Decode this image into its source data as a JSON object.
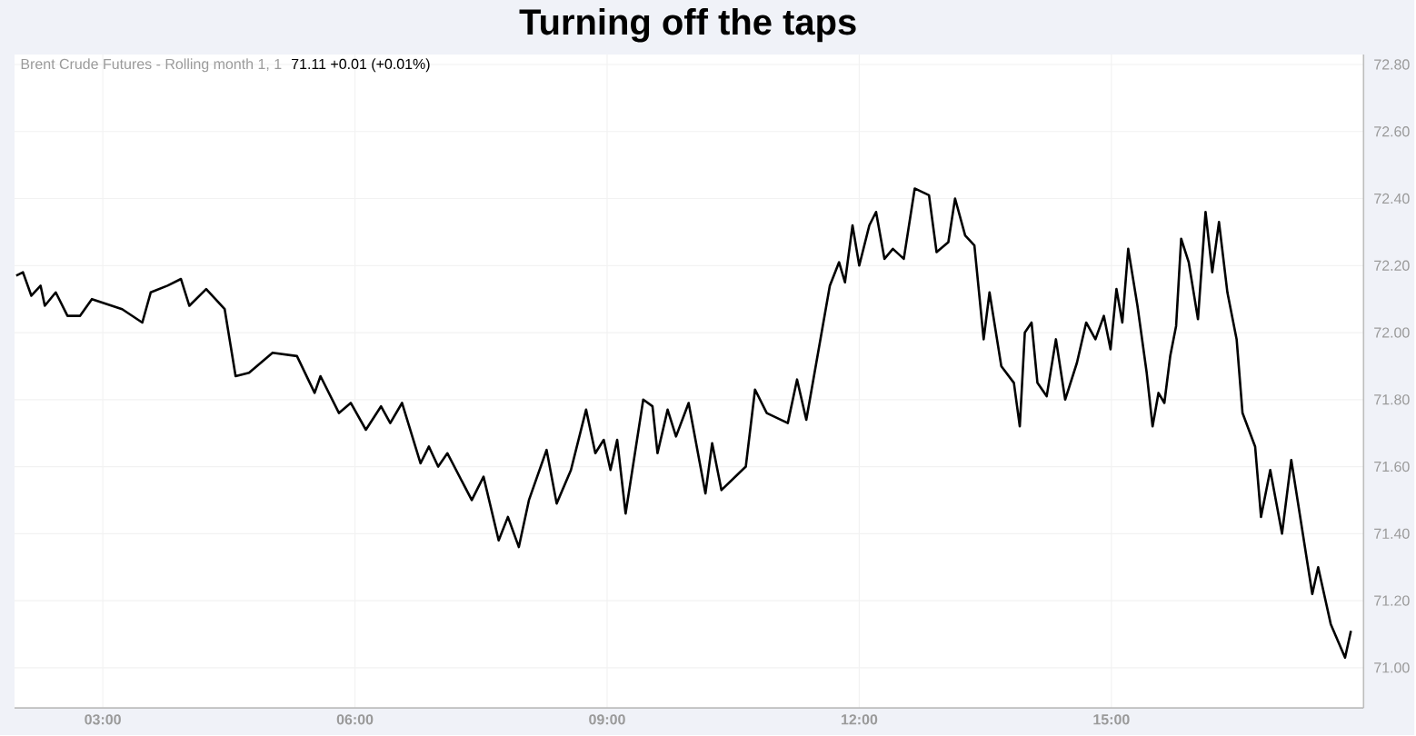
{
  "chart_data": {
    "type": "line",
    "title": "Turning off the taps",
    "subtitle": "Brent Crude Futures - Rolling month 1, 1",
    "annotations": [
      "71.11  +0.01 (+0.01%)"
    ],
    "xlim": [
      1.95,
      18
    ],
    "ylim": [
      70.88,
      72.83
    ],
    "xticks": [
      {
        "value": 3,
        "label": "03:00"
      },
      {
        "value": 6,
        "label": "06:00"
      },
      {
        "value": 9,
        "label": "09:00"
      },
      {
        "value": 12,
        "label": "12:00"
      },
      {
        "value": 15,
        "label": "15:00"
      }
    ],
    "yticks": [
      {
        "value": 71,
        "label": "71.00"
      },
      {
        "value": 71.2,
        "label": "71.20"
      },
      {
        "value": 71.4,
        "label": "71.40"
      },
      {
        "value": 71.6,
        "label": "71.60"
      },
      {
        "value": 71.8,
        "label": "71.80"
      },
      {
        "value": 72,
        "label": "72.00"
      },
      {
        "value": 72.2,
        "label": "72.20"
      },
      {
        "value": 72.4,
        "label": "72.40"
      },
      {
        "value": 72.6,
        "label": "72.60"
      },
      {
        "value": 72.8,
        "label": "72.80"
      }
    ],
    "grid": true,
    "series": [
      {
        "color": "#000000",
        "x": [
          1.97,
          2.05,
          2.15,
          2.26,
          2.31,
          2.44,
          2.58,
          2.73,
          2.87,
          3.23,
          3.47,
          3.57,
          3.77,
          3.93,
          4.03,
          4.23,
          4.45,
          4.58,
          4.74,
          4.88,
          5.02,
          5.31,
          5.52,
          5.59,
          5.81,
          5.95,
          6.13,
          6.31,
          6.42,
          6.56,
          6.78,
          6.88,
          6.99,
          7.1,
          7.39,
          7.53,
          7.71,
          7.82,
          7.95,
          8.07,
          8.28,
          8.4,
          8.57,
          8.75,
          8.86,
          8.96,
          9.04,
          9.12,
          9.22,
          9.43,
          9.54,
          9.6,
          9.72,
          9.82,
          9.97,
          10.17,
          10.25,
          10.36,
          10.65,
          10.76,
          10.9,
          11.15,
          11.26,
          11.37,
          11.51,
          11.65,
          11.76,
          11.83,
          11.92,
          12.0,
          12.12,
          12.2,
          12.3,
          12.4,
          12.53,
          12.66,
          12.83,
          12.92,
          13.06,
          13.14,
          13.26,
          13.37,
          13.48,
          13.55,
          13.69,
          13.84,
          13.91,
          13.97,
          14.05,
          14.12,
          14.23,
          14.34,
          14.45,
          14.59,
          14.7,
          14.81,
          14.91,
          14.99,
          15.06,
          15.13,
          15.2,
          15.31,
          15.42,
          15.49,
          15.56,
          15.63,
          15.7,
          15.77,
          15.83,
          15.92,
          16.03,
          16.12,
          16.2,
          16.28,
          16.38,
          16.49,
          16.56,
          16.71,
          16.78,
          16.89,
          17.03,
          17.14,
          17.24,
          17.39,
          17.46,
          17.61,
          17.78,
          17.85
        ],
        "values": [
          72.17,
          72.18,
          72.11,
          72.14,
          72.08,
          72.12,
          72.05,
          72.05,
          72.1,
          72.07,
          72.03,
          72.12,
          72.14,
          72.16,
          72.08,
          72.13,
          72.07,
          71.87,
          71.88,
          71.91,
          71.94,
          71.93,
          71.82,
          71.87,
          71.76,
          71.79,
          71.71,
          71.78,
          71.73,
          71.79,
          71.61,
          71.66,
          71.6,
          71.64,
          71.5,
          71.57,
          71.38,
          71.45,
          71.36,
          71.5,
          71.65,
          71.49,
          71.59,
          71.77,
          71.64,
          71.68,
          71.59,
          71.68,
          71.46,
          71.8,
          71.78,
          71.64,
          71.77,
          71.69,
          71.79,
          71.52,
          71.67,
          71.53,
          71.6,
          71.83,
          71.76,
          71.73,
          71.86,
          71.74,
          71.94,
          72.14,
          72.21,
          72.15,
          72.32,
          72.2,
          72.32,
          72.36,
          72.22,
          72.25,
          72.22,
          72.43,
          72.41,
          72.24,
          72.27,
          72.4,
          72.29,
          72.26,
          71.98,
          72.12,
          71.9,
          71.85,
          71.72,
          72.0,
          72.03,
          71.85,
          71.81,
          71.98,
          71.8,
          71.91,
          72.03,
          71.98,
          72.05,
          71.95,
          72.13,
          72.03,
          72.25,
          72.08,
          71.88,
          71.72,
          71.82,
          71.79,
          71.93,
          72.02,
          72.28,
          72.21,
          72.04,
          72.36,
          72.18,
          72.33,
          72.12,
          71.98,
          71.76,
          71.66,
          71.45,
          71.59,
          71.4,
          71.62,
          71.46,
          71.22,
          71.3,
          71.13,
          71.03,
          71.11
        ]
      }
    ]
  }
}
